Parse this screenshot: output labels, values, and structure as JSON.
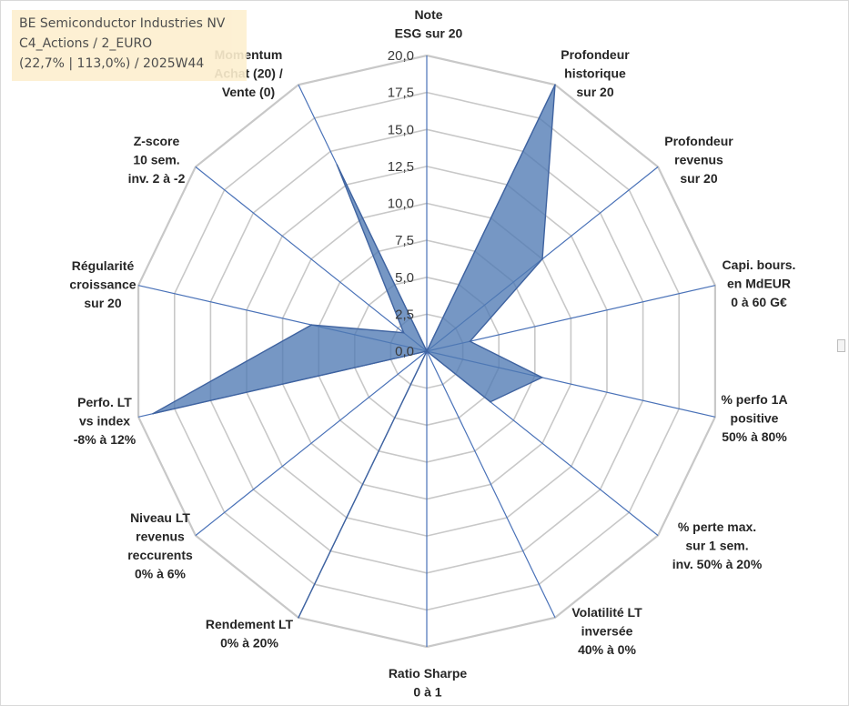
{
  "info_box": {
    "line1": "BE Semiconductor Industries NV",
    "line2": "C4_Actions / 2_EURO",
    "line3": "(22,7% | 113,0%) / 2025W44"
  },
  "colors": {
    "grid": "#c8c8c8",
    "spoke": "#4a72b8",
    "fill": "#4f7ab4",
    "stroke": "#3f63a0"
  },
  "chart_data": {
    "type": "radar",
    "title": "",
    "rlim": [
      0,
      20
    ],
    "ticks": [
      "0,0",
      "2,5",
      "5,0",
      "7,5",
      "10,0",
      "12,5",
      "15,0",
      "17,5",
      "20,0"
    ],
    "grid": true,
    "categories": [
      "Note\nESG sur 20",
      "Profondeur\nhistorique\nsur 20",
      "Profondeur\nrevenus\nsur 20",
      "Capi. bours.\nen MdEUR\n0 à 60 G€",
      "% perfo 1A\npositive\n50% à 80%",
      "% perte max.\nsur 1 sem.\ninv. 50% à 20%",
      "Volatilité LT\ninversée\n40% à 0%",
      "Ratio Sharpe\n0 à 1",
      "Rendement LT\n0% à 20%",
      "Niveau LT\nrevenus\nreccurents\n0% à 6%",
      "Perfo. LT\nvs index\n-8% à 12%",
      "Régularité\ncroissance\nsur 20",
      "Z-score\n10 sem.\ninv. 2 à -2",
      "Momentum\nAchat (20) /\nVente (0)"
    ],
    "values": [
      0,
      20,
      10,
      3,
      8,
      5.5,
      0,
      0,
      20,
      0,
      19,
      8,
      2,
      14
    ]
  }
}
